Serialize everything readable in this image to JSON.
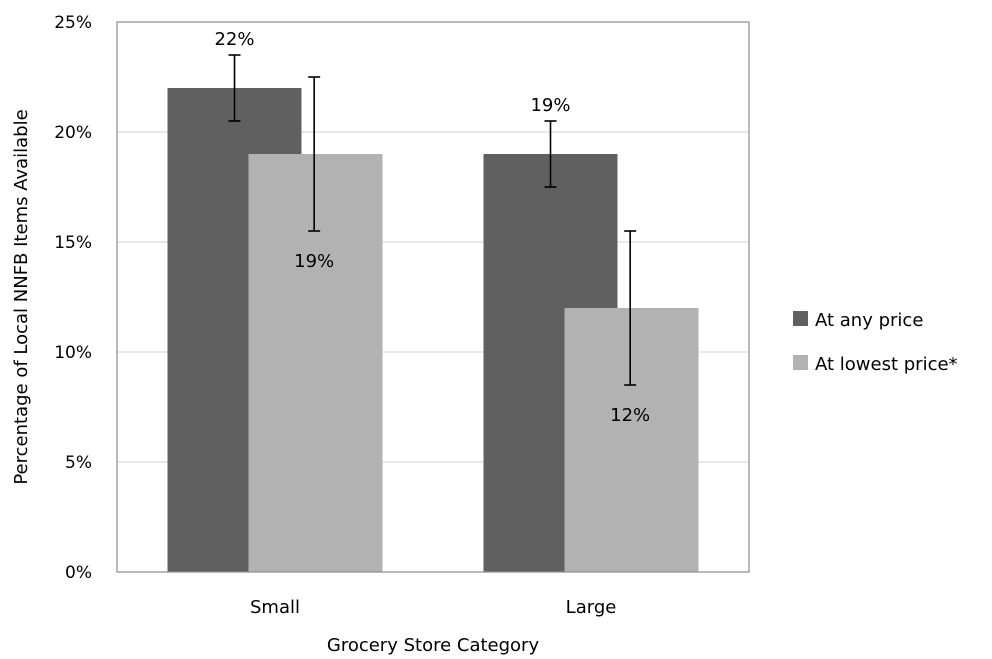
{
  "chart_data": {
    "type": "bar",
    "title": "",
    "xlabel": "Grocery Store Category",
    "ylabel": "Percentage of Local NNFB Items Available",
    "categories": [
      "Small",
      "Large"
    ],
    "ylim": [
      0,
      25
    ],
    "yticks": [
      "0%",
      "5%",
      "10%",
      "15%",
      "20%",
      "25%"
    ],
    "ytick_values": [
      0,
      5,
      10,
      15,
      20,
      25
    ],
    "grid": true,
    "legend_position": "right",
    "series": [
      {
        "name": "At any price",
        "color": "#606060",
        "values": [
          22,
          19
        ],
        "labels": [
          "22%",
          "19%"
        ],
        "error": [
          1.5,
          1.5
        ]
      },
      {
        "name": "At lowest price*",
        "color": "#b2b2b2",
        "values": [
          19,
          12
        ],
        "labels": [
          "19%",
          "12%"
        ],
        "error": [
          3.5,
          3.5
        ]
      }
    ]
  }
}
